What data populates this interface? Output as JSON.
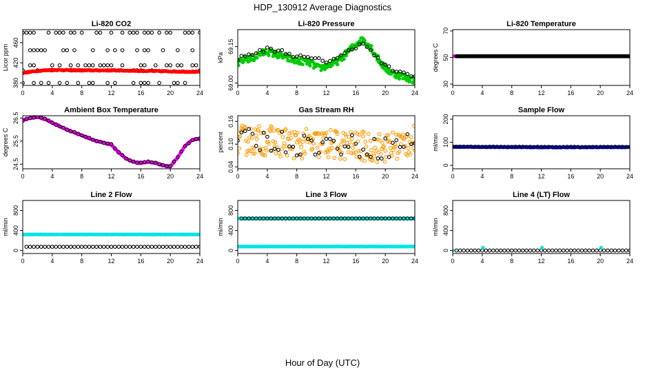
{
  "figure": {
    "title": "HDP_130912  Average Diagnostics",
    "xlabel": "Hour of Day (UTC)"
  },
  "chart_data": [
    {
      "type": "scatter",
      "title": "Li-820 CO2",
      "ylabel": "Licor ppm",
      "xlim": [
        0,
        24
      ],
      "ylim": [
        375,
        486
      ],
      "xticks": [
        0,
        4,
        8,
        12,
        16,
        20,
        24
      ],
      "yticks": [
        380,
        420,
        460
      ],
      "series": [
        {
          "name": "individual",
          "style": "open",
          "color": "#000000",
          "gen": "co2scatter",
          "params": {}
        },
        {
          "name": "average",
          "style": "filled",
          "color": "#ff0000",
          "gen": "curve",
          "params": {
            "pts": [
              [
                0,
                400
              ],
              [
                2,
                404
              ],
              [
                4,
                406
              ],
              [
                8,
                405
              ],
              [
                12,
                405
              ],
              [
                16,
                404
              ],
              [
                20,
                403
              ],
              [
                24,
                402
              ]
            ],
            "noise": 1
          }
        }
      ]
    },
    {
      "type": "scatter",
      "title": "Li-820 Pressure",
      "ylabel": "kPa",
      "xlim": [
        0,
        24
      ],
      "ylim": [
        68.99,
        69.22
      ],
      "xticks": [
        0,
        4,
        8,
        12,
        16,
        20,
        24
      ],
      "yticks": [
        69.0,
        69.15
      ],
      "ytick_labels": [
        "69.00",
        "69.15"
      ],
      "series": [
        {
          "name": "average",
          "style": "filled",
          "color": "#00cc00",
          "gen": "curve",
          "params": {
            "pts": [
              [
                0,
                69.08
              ],
              [
                1,
                69.1
              ],
              [
                2,
                69.1
              ],
              [
                3,
                69.12
              ],
              [
                4,
                69.13
              ],
              [
                5,
                69.12
              ],
              [
                6,
                69.11
              ],
              [
                7,
                69.1
              ],
              [
                8,
                69.09
              ],
              [
                9,
                69.09
              ],
              [
                10,
                69.08
              ],
              [
                11,
                69.06
              ],
              [
                12,
                69.07
              ],
              [
                13,
                69.08
              ],
              [
                14,
                69.1
              ],
              [
                15,
                69.13
              ],
              [
                16,
                69.16
              ],
              [
                17,
                69.18
              ],
              [
                18,
                69.15
              ],
              [
                19,
                69.1
              ],
              [
                20,
                69.06
              ],
              [
                21,
                69.04
              ],
              [
                22,
                69.03
              ],
              [
                23,
                69.02
              ],
              [
                24,
                69.01
              ]
            ],
            "noise": 0.014
          }
        },
        {
          "name": "individual",
          "style": "open",
          "color": "#000000",
          "gen": "curve",
          "params": {
            "pts": [
              [
                0,
                69.1
              ],
              [
                2,
                69.12
              ],
              [
                4,
                69.14
              ],
              [
                6,
                69.13
              ],
              [
                8,
                69.11
              ],
              [
                10,
                69.1
              ],
              [
                12,
                69.09
              ],
              [
                14,
                69.11
              ],
              [
                16,
                69.15
              ],
              [
                17,
                69.17
              ],
              [
                18,
                69.13
              ],
              [
                20,
                69.07
              ],
              [
                22,
                69.04
              ],
              [
                24,
                69.03
              ]
            ],
            "noise": 0.008,
            "step": 0.5
          }
        }
      ]
    },
    {
      "type": "scatter",
      "title": "Li-820 Temperature",
      "ylabel": "degrees C",
      "xlim": [
        0,
        24
      ],
      "ylim": [
        29,
        71
      ],
      "xticks": [
        0,
        4,
        8,
        12,
        16,
        20,
        24
      ],
      "yticks": [
        30,
        50,
        70
      ],
      "series": [
        {
          "name": "average",
          "style": "filled",
          "color": "#ff00ff",
          "gen": "curve",
          "params": {
            "pts": [
              [
                0,
                51
              ],
              [
                24,
                51
              ]
            ],
            "noise": 0
          }
        },
        {
          "name": "individual",
          "style": "open",
          "color": "#000000",
          "gen": "curve",
          "params": {
            "pts": [
              [
                0.5,
                51
              ],
              [
                24,
                51
              ]
            ],
            "noise": 0
          }
        }
      ]
    },
    {
      "type": "scatter",
      "title": "Ambient Box Temperature",
      "ylabel": "degrees C",
      "xlim": [
        0,
        24
      ],
      "ylim": [
        24.3,
        26.6
      ],
      "xticks": [
        0,
        4,
        8,
        12,
        16,
        20,
        24
      ],
      "yticks": [
        24.5,
        25.5,
        26.5
      ],
      "series": [
        {
          "name": "average",
          "style": "filled",
          "color": "#ff00ff",
          "gen": "curve",
          "params": {
            "pts": [
              [
                0,
                26.4
              ],
              [
                1,
                26.5
              ],
              [
                2,
                26.55
              ],
              [
                3,
                26.45
              ],
              [
                4,
                26.3
              ],
              [
                6,
                26.0
              ],
              [
                8,
                25.75
              ],
              [
                10,
                25.5
              ],
              [
                12,
                25.35
              ],
              [
                13,
                25.0
              ],
              [
                14,
                24.75
              ],
              [
                15,
                24.6
              ],
              [
                16,
                24.55
              ],
              [
                17,
                24.6
              ],
              [
                18,
                24.55
              ],
              [
                19,
                24.45
              ],
              [
                20,
                24.4
              ],
              [
                21,
                24.8
              ],
              [
                22,
                25.3
              ],
              [
                23,
                25.55
              ],
              [
                24,
                25.6
              ]
            ],
            "noise": 0.02
          }
        },
        {
          "name": "individual",
          "style": "open",
          "color": "#000000",
          "gen": "curve",
          "params": {
            "pts": [
              [
                0,
                26.4
              ],
              [
                1,
                26.5
              ],
              [
                2,
                26.55
              ],
              [
                3,
                26.45
              ],
              [
                4,
                26.3
              ],
              [
                6,
                26.0
              ],
              [
                8,
                25.75
              ],
              [
                10,
                25.5
              ],
              [
                12,
                25.35
              ],
              [
                13,
                25.0
              ],
              [
                14,
                24.75
              ],
              [
                15,
                24.6
              ],
              [
                16,
                24.55
              ],
              [
                17,
                24.6
              ],
              [
                18,
                24.55
              ],
              [
                19,
                24.45
              ],
              [
                20,
                24.4
              ],
              [
                21,
                24.8
              ],
              [
                22,
                25.3
              ],
              [
                23,
                25.55
              ],
              [
                24,
                25.6
              ]
            ],
            "noise": 0.02,
            "step": 0.5
          }
        }
      ]
    },
    {
      "type": "scatter",
      "title": "Gas Stream RH",
      "ylabel": "percent",
      "xlim": [
        0,
        24
      ],
      "ylim": [
        0.035,
        0.175
      ],
      "xticks": [
        0,
        4,
        8,
        12,
        16,
        20,
        24
      ],
      "yticks": [
        0.04,
        0.1,
        0.16
      ],
      "ytick_labels": [
        "0.04",
        "0.10",
        "0.16"
      ],
      "series": [
        {
          "name": "average",
          "style": "open",
          "color": "#ff9900",
          "gen": "curve",
          "params": {
            "pts": [
              [
                0,
                0.11
              ],
              [
                4,
                0.11
              ],
              [
                8,
                0.1
              ],
              [
                12,
                0.1
              ],
              [
                16,
                0.095
              ],
              [
                20,
                0.09
              ],
              [
                22,
                0.1
              ],
              [
                24,
                0.11
              ]
            ],
            "noise": 0.04
          }
        },
        {
          "name": "individual",
          "style": "open",
          "color": "#000000",
          "gen": "curve",
          "params": {
            "pts": [
              [
                0,
                0.11
              ],
              [
                4,
                0.11
              ],
              [
                8,
                0.1
              ],
              [
                12,
                0.1
              ],
              [
                16,
                0.095
              ],
              [
                20,
                0.09
              ],
              [
                22,
                0.1
              ],
              [
                24,
                0.11
              ]
            ],
            "noise": 0.03,
            "step": 0.5
          }
        }
      ]
    },
    {
      "type": "scatter",
      "title": "Sample Flow",
      "ylabel": "ml/min",
      "xlim": [
        0,
        24
      ],
      "ylim": [
        -15,
        215
      ],
      "xticks": [
        0,
        4,
        8,
        12,
        16,
        20,
        24
      ],
      "yticks": [
        0,
        100,
        200
      ],
      "series": [
        {
          "name": "average",
          "style": "filled",
          "color": "#0000cc",
          "gen": "curve",
          "params": {
            "pts": [
              [
                0,
                80
              ],
              [
                14,
                78
              ],
              [
                24,
                79
              ]
            ],
            "noise": 1.2
          }
        },
        {
          "name": "individual",
          "style": "open",
          "color": "#000000",
          "gen": "curve",
          "params": {
            "pts": [
              [
                0,
                81
              ],
              [
                12,
                80
              ],
              [
                24,
                80
              ]
            ],
            "noise": 0.5,
            "step": 0.5
          }
        }
      ]
    },
    {
      "type": "scatter",
      "title": "Line 2 Flow",
      "ylabel": "ml/min",
      "xlim": [
        0,
        24
      ],
      "ylim": [
        -60,
        1000
      ],
      "xticks": [
        0,
        4,
        8,
        12,
        16,
        20,
        24
      ],
      "yticks": [
        0,
        400,
        800
      ],
      "series": [
        {
          "name": "average",
          "style": "filled",
          "color": "#00e5e5",
          "gen": "curve",
          "params": {
            "pts": [
              [
                0,
                320
              ],
              [
                24,
                320
              ]
            ],
            "noise": 2
          }
        },
        {
          "name": "individual",
          "style": "open",
          "color": "#000000",
          "gen": "curve",
          "params": {
            "pts": [
              [
                0.5,
                75
              ],
              [
                24,
                75
              ]
            ],
            "noise": 0,
            "step": 0.5
          }
        }
      ]
    },
    {
      "type": "scatter",
      "title": "Line 3 Flow",
      "ylabel": "ml/min",
      "xlim": [
        0,
        24
      ],
      "ylim": [
        -60,
        1000
      ],
      "xticks": [
        0,
        4,
        8,
        12,
        16,
        20,
        24
      ],
      "yticks": [
        0,
        400,
        800
      ],
      "series": [
        {
          "name": "average-high",
          "style": "filled",
          "color": "#00e5e5",
          "gen": "curve",
          "params": {
            "pts": [
              [
                0,
                640
              ],
              [
                24,
                640
              ]
            ],
            "noise": 2
          }
        },
        {
          "name": "individual-high",
          "style": "open",
          "color": "#000000",
          "gen": "curve",
          "params": {
            "pts": [
              [
                0.5,
                640
              ],
              [
                24,
                640
              ]
            ],
            "noise": 0,
            "step": 0.5
          }
        },
        {
          "name": "average-low",
          "style": "filled",
          "color": "#00e5e5",
          "gen": "curve",
          "params": {
            "pts": [
              [
                0,
                80
              ],
              [
                24,
                80
              ]
            ],
            "noise": 2
          }
        }
      ]
    },
    {
      "type": "scatter",
      "title": "Line 4 (LT) Flow",
      "ylabel": "ml/min",
      "xlim": [
        0,
        24
      ],
      "ylim": [
        -60,
        1000
      ],
      "xticks": [
        0,
        4,
        8,
        12,
        16,
        20,
        24
      ],
      "yticks": [
        0,
        400,
        800
      ],
      "series": [
        {
          "name": "individual",
          "style": "open",
          "color": "#000000",
          "gen": "curve",
          "params": {
            "pts": [
              [
                0.5,
                0
              ],
              [
                24,
                0
              ]
            ],
            "noise": 0,
            "step": 0.5
          }
        },
        {
          "name": "average",
          "style": "filled",
          "color": "#00e5e5",
          "gen": "points",
          "params": {
            "pts": [
              [
                0,
                0
              ],
              [
                4.1,
                60
              ],
              [
                12.1,
                60
              ],
              [
                20.1,
                60
              ]
            ]
          }
        }
      ]
    }
  ]
}
